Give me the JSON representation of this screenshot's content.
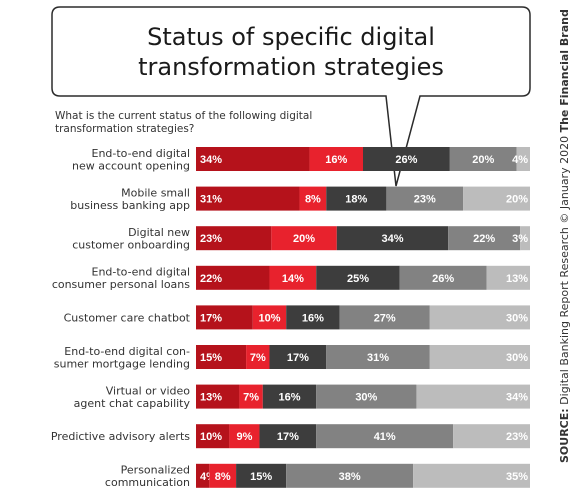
{
  "title_line1": "Status of specific digital",
  "title_line2": "transformation strategies",
  "question_line1": "What is the current status of the following digital",
  "question_line2": "transformation strategies?",
  "source_prefix": "SOURCE:",
  "source_text": " Digital Banking Report Research © January 2020 ",
  "source_brand": "The Financial Brand",
  "colors": [
    "#b5121b",
    "#e8222d",
    "#3d3d3d",
    "#828282",
    "#bcbcbc"
  ],
  "chart_data": {
    "type": "bar",
    "stacked": true,
    "orientation": "horizontal",
    "categories": [
      [
        "End-to-end digital",
        "new account opening"
      ],
      [
        "Mobile small",
        "business banking app"
      ],
      [
        "Digital new",
        "customer onboarding"
      ],
      [
        "End-to-end digital",
        "consumer personal loans"
      ],
      [
        "Customer care chatbot"
      ],
      [
        "End-to-end digital con-",
        "sumer mortgage lending"
      ],
      [
        "Virtual or video",
        "agent chat capability"
      ],
      [
        "Predictive advisory alerts"
      ],
      [
        "Personalized",
        "communication"
      ]
    ],
    "series": [
      {
        "values": [
          34,
          31,
          23,
          22,
          17,
          15,
          13,
          10,
          4
        ]
      },
      {
        "values": [
          16,
          8,
          20,
          14,
          10,
          7,
          7,
          9,
          8
        ]
      },
      {
        "values": [
          26,
          18,
          34,
          25,
          16,
          17,
          16,
          17,
          15
        ]
      },
      {
        "values": [
          20,
          23,
          22,
          26,
          27,
          31,
          30,
          41,
          38
        ]
      },
      {
        "values": [
          4,
          20,
          3,
          13,
          30,
          30,
          34,
          23,
          35
        ]
      }
    ],
    "value_suffix": "%"
  }
}
